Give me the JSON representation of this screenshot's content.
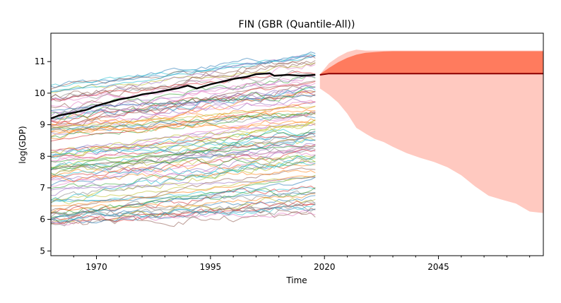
{
  "chart_data": {
    "type": "line",
    "title": "FIN (GBR (Quantile-All))",
    "xlabel": "Time",
    "ylabel": "log(GDP)",
    "xlim": [
      1960,
      2068
    ],
    "ylim": [
      4.85,
      11.9
    ],
    "x_ticks": [
      "1970",
      "1995",
      "2020",
      "2045"
    ],
    "y_ticks": [
      "5",
      "6",
      "7",
      "8",
      "9",
      "10",
      "11"
    ],
    "grid": false,
    "legend": "none",
    "background_series": {
      "count": 100,
      "years": [
        1960,
        2018
      ],
      "start_range": [
        5.8,
        10.3
      ],
      "end_range": [
        6.5,
        11.3
      ],
      "opacity": 0.55
    },
    "highlight_series": {
      "color": "#000000",
      "x": [
        1960,
        1962,
        1965,
        1968,
        1970,
        1972,
        1975,
        1978,
        1980,
        1983,
        1985,
        1988,
        1990,
        1992,
        1995,
        1998,
        2000,
        2003,
        2005,
        2008,
        2009,
        2010,
        2012,
        2015,
        2018
      ],
      "y": [
        9.2,
        9.3,
        9.38,
        9.48,
        9.6,
        9.68,
        9.8,
        9.88,
        9.96,
        10.02,
        10.08,
        10.16,
        10.24,
        10.15,
        10.28,
        10.38,
        10.45,
        10.52,
        10.6,
        10.63,
        10.55,
        10.56,
        10.58,
        10.55,
        10.58
      ]
    },
    "forecast": {
      "x": [
        2019,
        2021,
        2023,
        2025,
        2027,
        2029,
        2031,
        2033,
        2035,
        2038,
        2041,
        2044,
        2047,
        2050,
        2053,
        2056,
        2059,
        2062,
        2065,
        2068
      ],
      "median": [
        10.58,
        10.62,
        10.62,
        10.62,
        10.62,
        10.62,
        10.62,
        10.62,
        10.62,
        10.62,
        10.62,
        10.62,
        10.62,
        10.62,
        10.62,
        10.62,
        10.62,
        10.62,
        10.62,
        10.62
      ],
      "inner_lower": [
        10.58,
        10.62,
        10.62,
        10.62,
        10.62,
        10.62,
        10.62,
        10.62,
        10.62,
        10.62,
        10.62,
        10.62,
        10.62,
        10.62,
        10.62,
        10.62,
        10.62,
        10.62,
        10.62,
        10.62
      ],
      "inner_upper": [
        10.6,
        10.8,
        10.98,
        11.12,
        11.22,
        11.28,
        11.3,
        11.32,
        11.33,
        11.33,
        11.33,
        11.33,
        11.33,
        11.33,
        11.33,
        11.33,
        11.33,
        11.33,
        11.33,
        11.33
      ],
      "outer_lower": [
        10.15,
        9.95,
        9.7,
        9.35,
        8.9,
        8.72,
        8.55,
        8.45,
        8.3,
        8.1,
        7.95,
        7.82,
        7.65,
        7.4,
        7.05,
        6.75,
        6.62,
        6.5,
        6.25,
        6.2
      ],
      "outer_upper": [
        10.6,
        10.95,
        11.15,
        11.3,
        11.38,
        11.35,
        11.35,
        11.35,
        11.35,
        11.35,
        11.35,
        11.35,
        11.35,
        11.35,
        11.35,
        11.35,
        11.35,
        11.35,
        11.35,
        11.35
      ],
      "median_color": "#8b0000",
      "inner_color": "#ff7b5e",
      "outer_color": "#ffc9c0"
    },
    "palette": [
      "#1f77b4",
      "#ff7f0e",
      "#2ca02c",
      "#d62728",
      "#9467bd",
      "#8c564b",
      "#e377c2",
      "#7f7f7f",
      "#bcbd22",
      "#17becf"
    ]
  }
}
